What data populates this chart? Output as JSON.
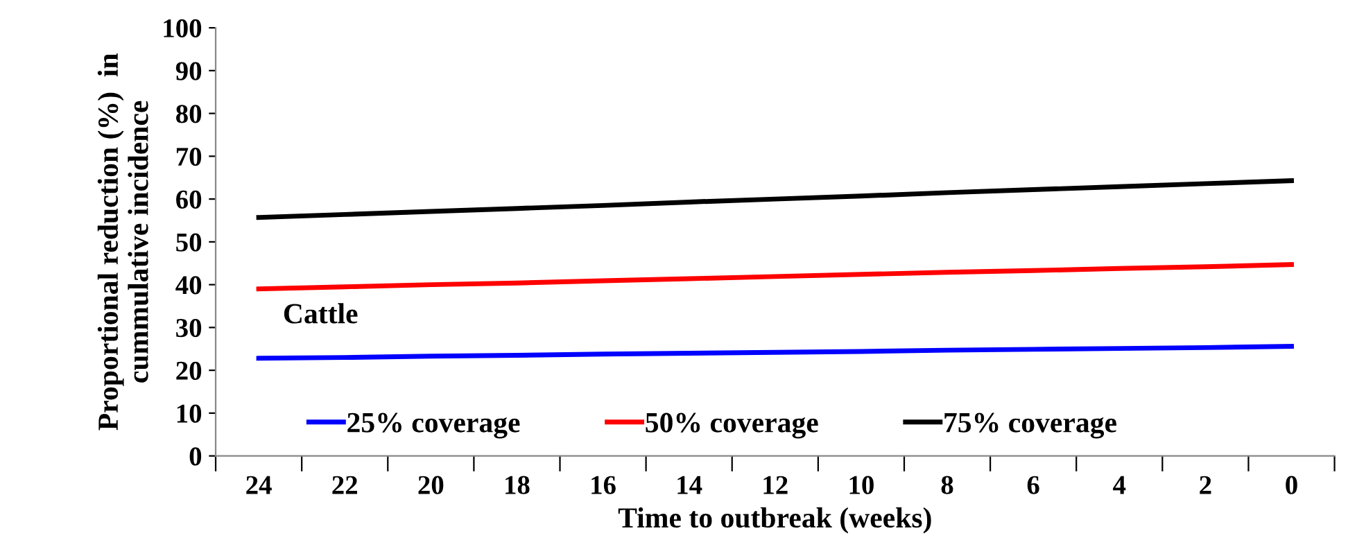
{
  "chart_data": {
    "type": "line",
    "xlabel": "Time to outbreak (weeks)",
    "ylabel": "Proportional reduction (%)  in\ncummulative incidence",
    "categories": [
      "24",
      "22",
      "20",
      "18",
      "16",
      "14",
      "12",
      "10",
      "8",
      "6",
      "4",
      "2",
      "0"
    ],
    "series": [
      {
        "name": "25% coverage",
        "color": "#0000ff",
        "values": [
          22.8,
          23.0,
          23.3,
          23.5,
          23.8,
          24.0,
          24.2,
          24.4,
          24.7,
          24.9,
          25.1,
          25.3,
          25.6
        ]
      },
      {
        "name": "50% coverage",
        "color": "#ff0000",
        "values": [
          39.0,
          39.5,
          40.0,
          40.4,
          40.9,
          41.4,
          41.9,
          42.4,
          42.9,
          43.3,
          43.8,
          44.2,
          44.7
        ]
      },
      {
        "name": "75% coverage",
        "color": "#000000",
        "values": [
          55.7,
          56.4,
          57.1,
          57.8,
          58.5,
          59.3,
          60.0,
          60.7,
          61.5,
          62.2,
          62.9,
          63.6,
          64.3
        ]
      }
    ],
    "ylim": [
      0,
      100
    ],
    "yticks": [
      0,
      10,
      20,
      30,
      40,
      50,
      60,
      70,
      80,
      90,
      100
    ],
    "annotations": [
      "Cattle"
    ],
    "legend": "bottom",
    "grid": false,
    "marker": "none",
    "line_style": "solid"
  }
}
